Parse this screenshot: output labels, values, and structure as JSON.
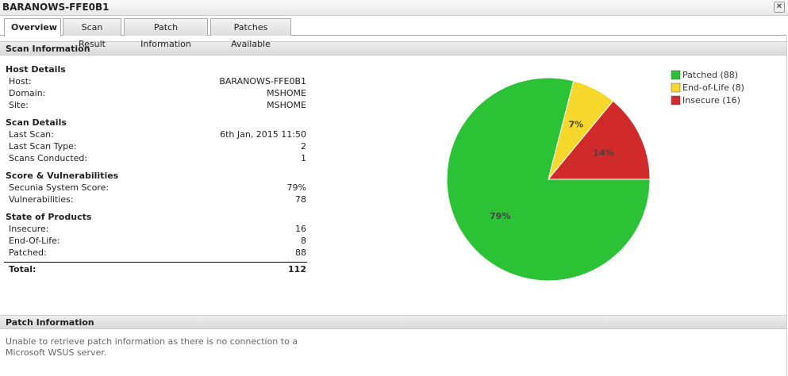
{
  "window_title": "BARANOWS-FFE0B1",
  "tabs": [
    "Overview",
    "Scan Result",
    "Patch Information",
    "Patches Available"
  ],
  "scan_information": {
    "title": "Scan Information",
    "groups": [
      {
        "title": "Host Details",
        "rows": [
          [
            "Host:",
            "BARANOWS-FFE0B1"
          ],
          [
            "Domain:",
            "MSHOME"
          ],
          [
            "Site:",
            "MSHOME"
          ]
        ]
      },
      {
        "title": "Scan Details",
        "rows": [
          [
            "Last Scan:",
            "6th Jan, 2015 11:50"
          ],
          [
            "Last Scan Type:",
            "2"
          ],
          [
            "Scans Conducted:",
            "1"
          ]
        ]
      },
      {
        "title": "Score & Vulnerabilities",
        "rows": [
          [
            "Secunia System Score:",
            "79%"
          ],
          [
            "Vulnerabilities:",
            "78"
          ]
        ]
      },
      {
        "title": "State of Products",
        "rows": [
          [
            "Insecure:",
            "16"
          ],
          [
            "End-Of-Life:",
            "8"
          ],
          [
            "Patched:",
            "88"
          ]
        ]
      }
    ],
    "total": [
      "Total:",
      "112"
    ]
  },
  "chart_data": {
    "type": "pie",
    "categories": [
      "Patched (88)",
      "End-of-Life (8)",
      "Insecure (16)"
    ],
    "values": [
      79,
      7,
      14
    ],
    "value_labels": [
      "79%",
      "7%",
      "14%"
    ],
    "colors": [
      "#2bc236",
      "#f5d82b",
      "#d02a2a"
    ],
    "legend": "top-right"
  },
  "patch_information": {
    "title": "Patch Information",
    "message": "Unable to retrieve patch information as there is no connection to a Microsoft WSUS server."
  }
}
